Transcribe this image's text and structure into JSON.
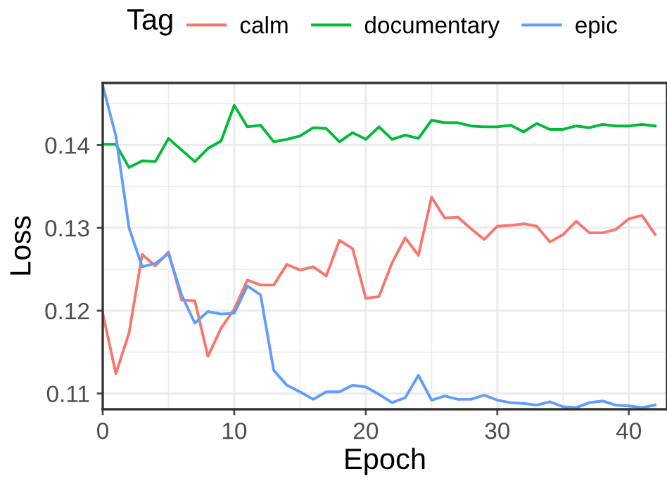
{
  "chart_data": {
    "type": "line",
    "xlabel": "Epoch",
    "ylabel": "Loss",
    "legend_title": "Tag",
    "legend": "top",
    "x": [
      0,
      1,
      2,
      3,
      4,
      5,
      6,
      7,
      8,
      9,
      10,
      11,
      12,
      13,
      14,
      15,
      16,
      17,
      18,
      19,
      20,
      21,
      22,
      23,
      24,
      25,
      26,
      27,
      28,
      29,
      30,
      31,
      32,
      33,
      34,
      35,
      36,
      37,
      38,
      39,
      40,
      41,
      42
    ],
    "series": [
      {
        "name": "calm",
        "color": "#f8766d",
        "values": [
          0.1197,
          0.1124,
          0.1173,
          0.1268,
          0.1254,
          0.1271,
          0.1213,
          0.1212,
          0.1145,
          0.1179,
          0.1202,
          0.1237,
          0.1231,
          0.1231,
          0.1256,
          0.1249,
          0.1253,
          0.1242,
          0.1285,
          0.1275,
          0.1215,
          0.1217,
          0.1258,
          0.1288,
          0.1267,
          0.1337,
          0.1312,
          0.1313,
          0.1299,
          0.1286,
          0.1302,
          0.1303,
          0.1305,
          0.1302,
          0.1283,
          0.1292,
          0.1308,
          0.1294,
          0.1294,
          0.1298,
          0.1311,
          0.1315,
          0.1292
        ]
      },
      {
        "name": "documentary",
        "color": "#00ba38",
        "values": [
          0.1401,
          0.1401,
          0.1373,
          0.1381,
          0.138,
          0.1408,
          0.1394,
          0.138,
          0.1396,
          0.1405,
          0.1448,
          0.1422,
          0.1424,
          0.1404,
          0.1407,
          0.1411,
          0.1421,
          0.142,
          0.1404,
          0.1415,
          0.1407,
          0.1422,
          0.1407,
          0.1412,
          0.1408,
          0.143,
          0.1427,
          0.1427,
          0.1423,
          0.1422,
          0.1422,
          0.1424,
          0.1416,
          0.1426,
          0.1419,
          0.1419,
          0.1423,
          0.1421,
          0.1425,
          0.1423,
          0.1423,
          0.1425,
          0.1423
        ]
      },
      {
        "name": "epic",
        "color": "#619cff",
        "values": [
          0.1472,
          0.1411,
          0.13,
          0.1253,
          0.1257,
          0.1269,
          0.1219,
          0.1185,
          0.1199,
          0.1196,
          0.1197,
          0.123,
          0.1219,
          0.1128,
          0.111,
          0.1102,
          0.1093,
          0.1102,
          0.1102,
          0.111,
          0.1108,
          0.1099,
          0.1089,
          0.1095,
          0.1122,
          0.1092,
          0.1097,
          0.1093,
          0.1093,
          0.1098,
          0.1092,
          0.1089,
          0.1088,
          0.1086,
          0.109,
          0.1084,
          0.1083,
          0.1089,
          0.1091,
          0.1086,
          0.1085,
          0.1083,
          0.1086
        ]
      }
    ],
    "xlim": [
      0,
      42.9
    ],
    "ylim": [
      0.1081,
      0.1475
    ],
    "xticks": [
      0,
      10,
      20,
      30,
      40
    ],
    "yticks": [
      {
        "value": 0.11,
        "label": "0.11"
      },
      {
        "value": 0.12,
        "label": "0.12"
      },
      {
        "value": 0.13,
        "label": "0.13"
      },
      {
        "value": 0.14,
        "label": "0.14"
      }
    ],
    "grid": true,
    "marker": "none",
    "line_style": "solid"
  }
}
